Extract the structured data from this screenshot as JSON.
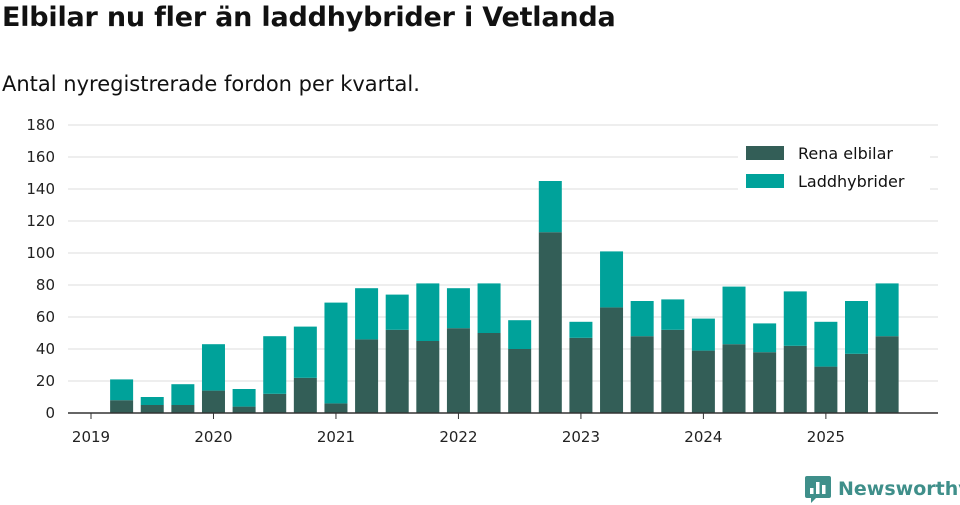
{
  "header": {
    "title": "Elbilar nu fler än laddhybrider i Vetlanda",
    "subtitle": "Antal nyregistrerade fordon per kvartal."
  },
  "brand": {
    "name": "Newsworthy",
    "icon": "newsworthy-logo-icon",
    "color": "#3f8f8a"
  },
  "chart_data": {
    "type": "bar",
    "stacked": true,
    "categories": [
      "2019 Q2",
      "2019 Q3",
      "2019 Q4",
      "2020 Q1",
      "2020 Q2",
      "2020 Q3",
      "2020 Q4",
      "2021 Q1",
      "2021 Q2",
      "2021 Q3",
      "2021 Q4",
      "2022 Q1",
      "2022 Q2",
      "2022 Q3",
      "2022 Q4",
      "2023 Q1",
      "2023 Q2",
      "2023 Q3",
      "2023 Q4",
      "2024 Q1",
      "2024 Q2",
      "2024 Q3",
      "2024 Q4",
      "2025 Q1",
      "2025 Q2",
      "2025 Q3"
    ],
    "series": [
      {
        "name": "Rena elbilar",
        "color": "#335e57",
        "values": [
          8,
          5,
          5,
          14,
          4,
          12,
          22,
          6,
          46,
          52,
          45,
          53,
          50,
          40,
          113,
          47,
          66,
          48,
          52,
          39,
          43,
          38,
          42,
          29,
          37,
          48
        ]
      },
      {
        "name": "Laddhybrider",
        "color": "#00a29a",
        "values": [
          13,
          5,
          13,
          29,
          11,
          36,
          32,
          63,
          32,
          22,
          36,
          25,
          31,
          18,
          32,
          10,
          35,
          22,
          19,
          20,
          36,
          18,
          34,
          28,
          33,
          33
        ]
      }
    ],
    "xticks": [
      "2019",
      "2020",
      "2021",
      "2022",
      "2023",
      "2024",
      "2025"
    ],
    "yticks": [
      0,
      20,
      40,
      60,
      80,
      100,
      120,
      140,
      160,
      180
    ],
    "ylim": [
      0,
      180
    ],
    "grid": "horizontal",
    "legend_position": "top-right"
  }
}
